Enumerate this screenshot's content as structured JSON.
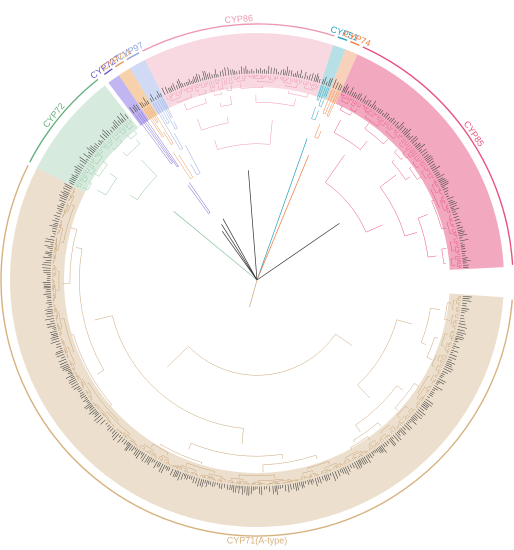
{
  "figure": {
    "type": "circular-phylogenetic-tree",
    "clades": [
      {
        "id": "cyp71",
        "label": "CYP71(A-type)",
        "color": "#d7b27f",
        "fill": "#e9d9c4"
      },
      {
        "id": "cyp72",
        "label": "CYP72",
        "color": "#64b07d",
        "fill": "#cfe6d7"
      },
      {
        "id": "cyp727",
        "label": "CYP727",
        "color": "#6b57c8",
        "fill": "#b6a9ee"
      },
      {
        "id": "cyp711",
        "label": "CYP711",
        "color": "#e49b54",
        "fill": "#f4c99e"
      },
      {
        "id": "cyp97",
        "label": "CYP97",
        "color": "#8fa3e0",
        "fill": "#c9d3f3"
      },
      {
        "id": "cyp86",
        "label": "CYP86",
        "color": "#ee97b0",
        "fill": "#f7d2dc"
      },
      {
        "id": "cyp51",
        "label": "CYP51",
        "color": "#2aa1b8",
        "fill": "#aad9e2"
      },
      {
        "id": "cyp74",
        "label": "CYP74",
        "color": "#f07a3c",
        "fill": "#f6c9ad"
      },
      {
        "id": "cyp85",
        "label": "CYP85",
        "color": "#e8527e",
        "fill": "#f09ab4"
      }
    ]
  }
}
